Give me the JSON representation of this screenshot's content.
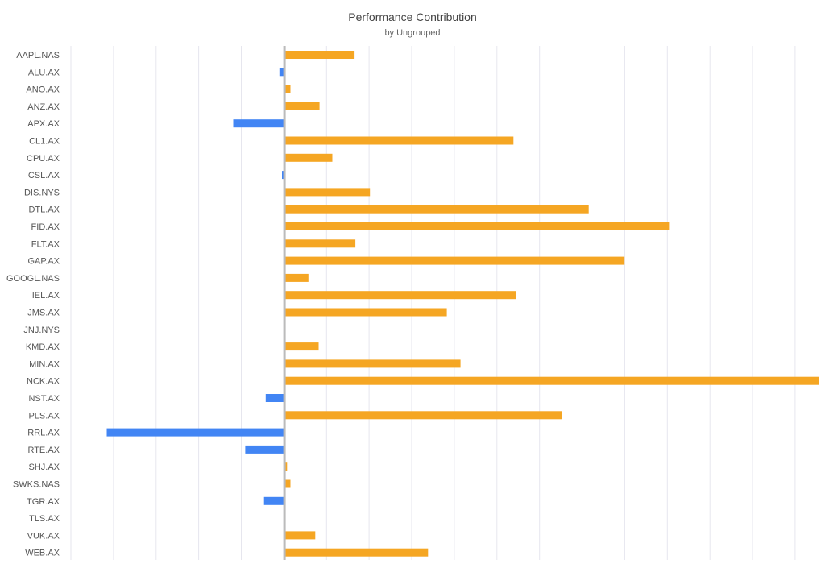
{
  "chart_data": {
    "type": "bar",
    "orientation": "horizontal",
    "title": "Performance Contribution",
    "subtitle": "by Ungrouped",
    "xlabel": "",
    "ylabel": "",
    "grid": true,
    "xlim": [
      -2.5,
      6.25
    ],
    "categories": [
      "AAPL.NAS",
      "ALU.AX",
      "ANO.AX",
      "ANZ.AX",
      "APX.AX",
      "CL1.AX",
      "CPU.AX",
      "CSL.AX",
      "DIS.NYS",
      "DTL.AX",
      "FID.AX",
      "FLT.AX",
      "GAP.AX",
      "GOOGL.NAS",
      "IEL.AX",
      "JMS.AX",
      "JNJ.NYS",
      "KMD.AX",
      "MIN.AX",
      "NCK.AX",
      "NST.AX",
      "PLS.AX",
      "RRL.AX",
      "RTE.AX",
      "SHJ.AX",
      "SWKS.NAS",
      "TGR.AX",
      "TLS.AX",
      "VUK.AX",
      "WEB.AX"
    ],
    "values": [
      0.82,
      -0.06,
      0.07,
      0.41,
      -0.6,
      2.68,
      0.56,
      -0.03,
      1.0,
      3.56,
      4.5,
      0.83,
      3.98,
      0.28,
      2.71,
      1.9,
      0.01,
      0.4,
      2.06,
      6.25,
      -0.22,
      3.25,
      -2.08,
      -0.46,
      0.03,
      0.07,
      -0.24,
      0.01,
      0.36,
      1.68
    ],
    "colors": {
      "positive": "#f5a623",
      "negative": "#4285f4"
    }
  }
}
